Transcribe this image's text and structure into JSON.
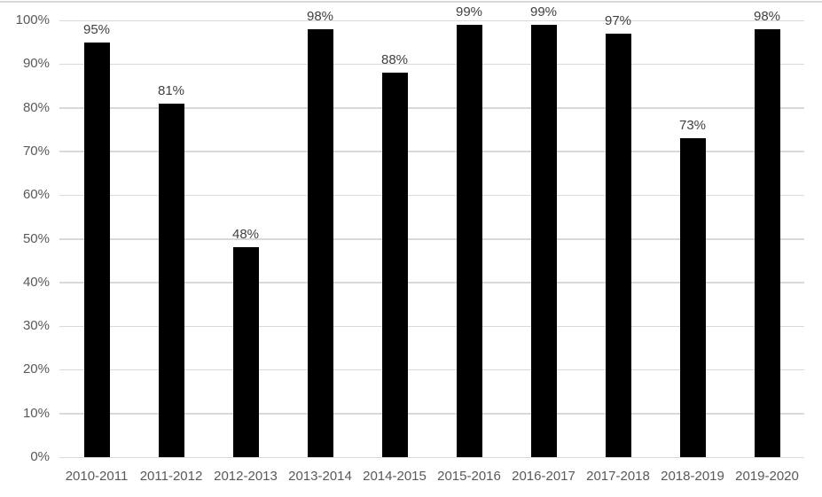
{
  "chart_data": {
    "type": "bar",
    "title": "",
    "xlabel": "",
    "ylabel": "",
    "categories": [
      "2010-2011",
      "2011-2012",
      "2012-2013",
      "2013-2014",
      "2014-2015",
      "2015-2016",
      "2016-2017",
      "2017-2018",
      "2018-2019",
      "2019-2020"
    ],
    "values": [
      95,
      81,
      48,
      98,
      88,
      99,
      99,
      97,
      73,
      98
    ],
    "data_labels": [
      "95%",
      "81%",
      "48%",
      "98%",
      "88%",
      "99%",
      "99%",
      "97%",
      "73%",
      "98%"
    ],
    "ylim": [
      0,
      100
    ],
    "ytick_step": 10,
    "ytick_labels": [
      "0%",
      "10%",
      "20%",
      "30%",
      "40%",
      "50%",
      "60%",
      "70%",
      "80%",
      "90%",
      "100%"
    ],
    "grid": true,
    "legend_position": "none",
    "colors": {
      "bar": "#000000",
      "gridline": "#d9d9d9",
      "axis_line": "#d9d9d9",
      "top_border": "#d9d9d9",
      "axis_label": "#595959",
      "data_label": "#404040",
      "background": "#ffffff"
    }
  }
}
